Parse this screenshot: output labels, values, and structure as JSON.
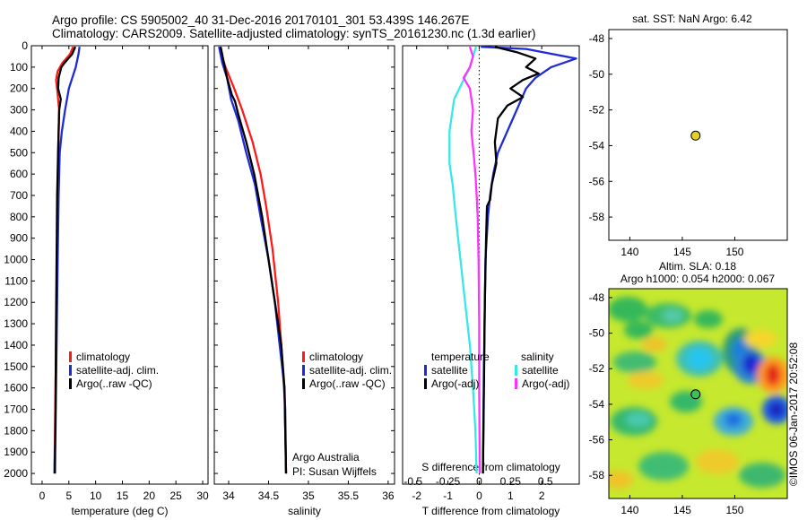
{
  "header": {
    "title_line1": "Argo profile: CS 5905002_40 31-Dec-2016 20170101_301 53.439S 146.267E",
    "title_line2": "Climatology: CARS2009. Satellite-adjusted climatology: synTS_20161230.nc (1.3d earlier)"
  },
  "colors": {
    "climatology": "#ff1a1a",
    "satellite": "#1f2bd6",
    "argo": "#000000",
    "salinity_satellite": "#38e8e8",
    "salinity_argo": "#ff33ff",
    "marker": "#e3d321"
  },
  "chart_data": [
    {
      "id": "temperature",
      "type": "line",
      "xlabel": "temperature (deg C)",
      "xticks": [
        0,
        5,
        10,
        15,
        20,
        25,
        30
      ],
      "xlim": [
        -2,
        31
      ],
      "ylim": [
        0,
        2050
      ],
      "yticks": [
        0,
        100,
        200,
        300,
        400,
        500,
        600,
        700,
        800,
        900,
        1000,
        1100,
        1200,
        1300,
        1400,
        1500,
        1600,
        1700,
        1800,
        1900,
        2000
      ],
      "legend": [
        "climatology",
        "satellite-adj. clim.",
        "Argo(..raw -QC)"
      ],
      "series": [
        {
          "name": "climatology",
          "color_key": "climatology",
          "points": [
            [
              5.8,
              5
            ],
            [
              5.2,
              40
            ],
            [
              3.8,
              80
            ],
            [
              2.9,
              120
            ],
            [
              2.6,
              160
            ],
            [
              2.8,
              200
            ],
            [
              3.0,
              250
            ],
            [
              3.2,
              300
            ],
            [
              3.1,
              400
            ],
            [
              3.0,
              500
            ],
            [
              2.9,
              700
            ],
            [
              2.8,
              1000
            ],
            [
              2.6,
              1400
            ],
            [
              2.4,
              1800
            ],
            [
              2.3,
              2000
            ]
          ]
        },
        {
          "name": "satellite-adj. clim.",
          "color_key": "satellite",
          "points": [
            [
              7.0,
              5
            ],
            [
              6.8,
              40
            ],
            [
              6.3,
              100
            ],
            [
              5.0,
              200
            ],
            [
              4.3,
              300
            ],
            [
              3.7,
              400
            ],
            [
              3.3,
              500
            ],
            [
              3.1,
              700
            ],
            [
              2.9,
              1000
            ],
            [
              2.7,
              1400
            ],
            [
              2.5,
              1800
            ],
            [
              2.3,
              2000
            ]
          ]
        },
        {
          "name": "Argo(..raw -QC)",
          "color_key": "argo",
          "points": [
            [
              6.2,
              5
            ],
            [
              5.6,
              40
            ],
            [
              4.2,
              80
            ],
            [
              3.6,
              100
            ],
            [
              3.1,
              150
            ],
            [
              3.0,
              200
            ],
            [
              3.5,
              250
            ],
            [
              3.2,
              300
            ],
            [
              3.1,
              400
            ],
            [
              3.0,
              500
            ],
            [
              2.8,
              700
            ],
            [
              2.7,
              1000
            ],
            [
              2.6,
              1300
            ],
            [
              2.5,
              1700
            ],
            [
              2.4,
              2000
            ]
          ]
        }
      ]
    },
    {
      "id": "salinity",
      "type": "line",
      "xlabel": "salinity",
      "xticks": [
        34,
        34.5,
        35,
        35.5,
        36
      ],
      "xlim": [
        33.82,
        36.08
      ],
      "ylim": [
        0,
        2050
      ],
      "legend": [
        "climatology",
        "satellite-adj. clim.",
        "Argo(..raw -QC)"
      ],
      "annotation": [
        "Argo Australia",
        "PI: Susan Wijffels"
      ],
      "series": [
        {
          "name": "climatology",
          "color_key": "climatology",
          "points": [
            [
              33.88,
              5
            ],
            [
              33.96,
              100
            ],
            [
              34.07,
              200
            ],
            [
              34.17,
              300
            ],
            [
              34.3,
              450
            ],
            [
              34.4,
              600
            ],
            [
              34.47,
              750
            ],
            [
              34.55,
              950
            ],
            [
              34.62,
              1200
            ],
            [
              34.66,
              1400
            ],
            [
              34.71,
              1700
            ],
            [
              34.72,
              2000
            ]
          ]
        },
        {
          "name": "satellite-adj. clim.",
          "color_key": "satellite",
          "points": [
            [
              33.88,
              5
            ],
            [
              33.92,
              80
            ],
            [
              33.98,
              150
            ],
            [
              34.03,
              250
            ],
            [
              34.12,
              350
            ],
            [
              34.22,
              500
            ],
            [
              34.33,
              650
            ],
            [
              34.4,
              800
            ],
            [
              34.5,
              1000
            ],
            [
              34.58,
              1200
            ],
            [
              34.64,
              1400
            ],
            [
              34.7,
              1600
            ],
            [
              34.72,
              2000
            ]
          ]
        },
        {
          "name": "Argo(..raw -QC)",
          "color_key": "argo",
          "points": [
            [
              33.9,
              5
            ],
            [
              33.94,
              80
            ],
            [
              33.98,
              150
            ],
            [
              34.04,
              230
            ],
            [
              34.08,
              260
            ],
            [
              34.12,
              320
            ],
            [
              34.22,
              450
            ],
            [
              34.32,
              600
            ],
            [
              34.42,
              800
            ],
            [
              34.5,
              1000
            ],
            [
              34.56,
              1150
            ],
            [
              34.62,
              1300
            ],
            [
              34.66,
              1400
            ],
            [
              34.7,
              1600
            ],
            [
              34.72,
              2000
            ]
          ]
        }
      ]
    },
    {
      "id": "difference",
      "type": "line",
      "xlabel": "T difference from climatology",
      "xlabel2": "S difference from climatology",
      "xticks": [
        -2,
        -1,
        0,
        1,
        2
      ],
      "xticks_top": [
        "-0.5",
        "-0.25",
        "0",
        "0.25",
        "0.5"
      ],
      "xlim": [
        -2.45,
        3.2
      ],
      "ylim": [
        0,
        2050
      ],
      "legend_temperature": [
        "temperature",
        "satellite",
        "Argo(-adj)"
      ],
      "legend_salinity": [
        "salinity",
        "satellite",
        "Argo(-adj)"
      ],
      "series": [
        {
          "name": "satellite",
          "color_key": "satellite",
          "points": [
            [
              0.05,
              5
            ],
            [
              1.5,
              15
            ],
            [
              3.1,
              60
            ],
            [
              2.3,
              100
            ],
            [
              1.8,
              150
            ],
            [
              1.5,
              200
            ],
            [
              1.2,
              300
            ],
            [
              0.9,
              400
            ],
            [
              0.6,
              500
            ],
            [
              0.45,
              600
            ],
            [
              0.35,
              700
            ],
            [
              0.28,
              800
            ],
            [
              0.2,
              1000
            ],
            [
              0.15,
              1500
            ],
            [
              0.12,
              2000
            ]
          ]
        },
        {
          "name": "Argo(-adj)",
          "color_key": "argo",
          "points": [
            [
              0.5,
              5
            ],
            [
              1.2,
              30
            ],
            [
              1.8,
              60
            ],
            [
              1.5,
              100
            ],
            [
              1.9,
              130
            ],
            [
              1.4,
              160
            ],
            [
              1.0,
              200
            ],
            [
              1.4,
              240
            ],
            [
              0.9,
              280
            ],
            [
              0.6,
              340
            ],
            [
              0.5,
              450
            ],
            [
              0.55,
              550
            ],
            [
              0.4,
              650
            ],
            [
              0.35,
              720
            ],
            [
              0.25,
              750
            ],
            [
              0.22,
              900
            ],
            [
              0.18,
              1200
            ],
            [
              0.15,
              1600
            ],
            [
              0.12,
              2000
            ]
          ]
        },
        {
          "name": "salinity satellite",
          "color_key": "salinity_satellite",
          "points": [
            [
              -0.1,
              5
            ],
            [
              -0.3,
              100
            ],
            [
              -0.8,
              250
            ],
            [
              -0.95,
              400
            ],
            [
              -0.95,
              550
            ],
            [
              -0.85,
              650
            ],
            [
              -0.75,
              800
            ],
            [
              -0.6,
              1000
            ],
            [
              -0.45,
              1200
            ],
            [
              -0.3,
              1400
            ],
            [
              -0.2,
              1600
            ],
            [
              -0.12,
              1800
            ],
            [
              -0.08,
              2000
            ]
          ]
        },
        {
          "name": "salinity Argo(-adj)",
          "color_key": "salinity_argo",
          "points": [
            [
              -0.3,
              5
            ],
            [
              -0.2,
              50
            ],
            [
              -0.3,
              100
            ],
            [
              -0.5,
              150
            ],
            [
              -0.3,
              200
            ],
            [
              -0.2,
              300
            ],
            [
              -0.25,
              400
            ],
            [
              -0.18,
              500
            ],
            [
              -0.12,
              600
            ],
            [
              -0.08,
              700
            ],
            [
              -0.05,
              800
            ],
            [
              -0.02,
              1000
            ],
            [
              0.0,
              1300
            ],
            [
              0.0,
              1600
            ],
            [
              0.02,
              2000
            ]
          ]
        }
      ]
    },
    {
      "id": "sst_map",
      "type": "scatter",
      "title": "sat. SST: NaN Argo: 6.42",
      "xticks": [
        140,
        145,
        150
      ],
      "yticks": [
        -48,
        -50,
        -52,
        -54,
        -56,
        -58
      ],
      "xlim": [
        138,
        155
      ],
      "ylim": [
        -59.3,
        -47.5
      ],
      "points": [
        [
          146.267,
          -53.439
        ]
      ]
    },
    {
      "id": "sla_map",
      "type": "heatmap",
      "title_line1": "Altim. SLA: 0.18",
      "title_line2": "Argo h1000: 0.054 h2000: 0.067",
      "xticks": [
        140,
        145,
        150
      ],
      "yticks": [
        -48,
        -50,
        -52,
        -54,
        -56,
        -58
      ],
      "xlim": [
        138,
        155
      ],
      "ylim": [
        -59.3,
        -47.5
      ],
      "points": [
        [
          146.267,
          -53.439
        ]
      ],
      "credit": "©IMOS 06-Jan-2017 20:52:08"
    }
  ]
}
